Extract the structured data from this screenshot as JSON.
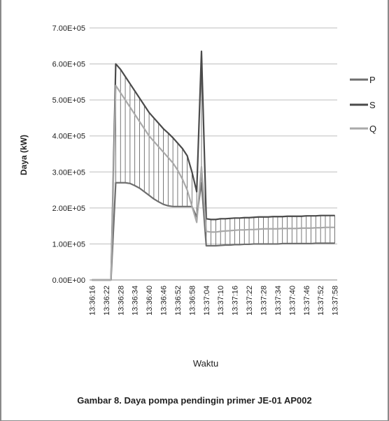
{
  "caption": "Gambar 8. Daya pompa pendingin primer JE-01 AP002",
  "chart_data": {
    "type": "line",
    "xlabel": "Waktu",
    "ylabel": "Daya (kW)",
    "ylim": [
      0,
      700000
    ],
    "yticks": [
      "0.00E+00",
      "1.00E+05",
      "2.00E+05",
      "3.00E+05",
      "4.00E+05",
      "5.00E+05",
      "6.00E+05",
      "7.00E+05"
    ],
    "ytick_values": [
      0,
      100000,
      200000,
      300000,
      400000,
      500000,
      600000,
      700000
    ],
    "grid": true,
    "legend_position": "right",
    "x_start": "13:36:16",
    "x_step_seconds": 2,
    "x_count": 52,
    "x_tick_every": 3,
    "xticks": [
      "13:36:16",
      "13:36:22",
      "13:36:28",
      "13:36:34",
      "13:36:40",
      "13:36:46",
      "13:36:52",
      "13:36:58",
      "13:37:04",
      "13:37:10",
      "13:37:16",
      "13:37:22",
      "13:37:28",
      "13:37:34",
      "13:37:40",
      "13:37:46",
      "13:37:52",
      "13:37:58"
    ],
    "series": [
      {
        "name": "P",
        "color": "#6e6e6e",
        "values": [
          0,
          0,
          0,
          0,
          0,
          270000,
          270000,
          270000,
          268000,
          262000,
          255000,
          245000,
          235000,
          225000,
          217000,
          210000,
          206000,
          204000,
          204000,
          204000,
          204000,
          204000,
          175000,
          270000,
          95000,
          95000,
          95000,
          96000,
          97000,
          97000,
          98000,
          98000,
          99000,
          99000,
          100000,
          100000,
          100000,
          100000,
          100000,
          100000,
          101000,
          101000,
          101000,
          101000,
          101000,
          101000,
          101000,
          102000,
          102000,
          102000,
          102000,
          102000
        ]
      },
      {
        "name": "S",
        "color": "#4a4a4a",
        "values": [
          0,
          0,
          0,
          0,
          0,
          600000,
          585000,
          565000,
          545000,
          525000,
          505000,
          485000,
          465000,
          450000,
          435000,
          420000,
          408000,
          395000,
          380000,
          365000,
          345000,
          300000,
          245000,
          635000,
          170000,
          168000,
          168000,
          170000,
          170000,
          171000,
          172000,
          172000,
          173000,
          173000,
          174000,
          175000,
          175000,
          175000,
          176000,
          176000,
          176000,
          177000,
          177000,
          177000,
          177000,
          178000,
          178000,
          178000,
          179000,
          179000,
          179000,
          179000
        ]
      },
      {
        "name": "Q",
        "color": "#a9a9a9",
        "values": [
          0,
          0,
          0,
          0,
          0,
          540000,
          520000,
          500000,
          480000,
          460000,
          440000,
          420000,
          400000,
          385000,
          370000,
          355000,
          340000,
          325000,
          305000,
          280000,
          250000,
          205000,
          160000,
          315000,
          135000,
          133000,
          133000,
          135000,
          136000,
          137000,
          138000,
          139000,
          139000,
          140000,
          140000,
          141000,
          142000,
          142000,
          142000,
          142000,
          143000,
          143000,
          143000,
          143000,
          144000,
          144000,
          144000,
          145000,
          145000,
          146000,
          146000,
          146000
        ]
      }
    ]
  }
}
